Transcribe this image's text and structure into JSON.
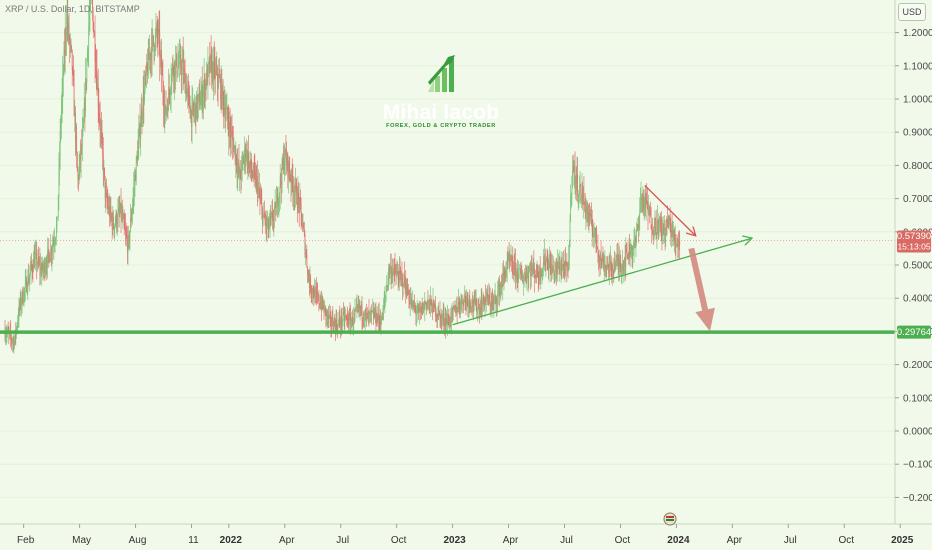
{
  "symbol": "XRP / U.S. Dollar, 1D, BITSTAMP",
  "currency": "USD",
  "logo": {
    "name": "Mihai Iacob",
    "tagline": "FOREX, GOLD & CRYPTO TRADER"
  },
  "colors": {
    "background": "#f1f9ea",
    "up_candle": "#7cc47a",
    "down_candle": "#e0736f",
    "support_line": "#4caf50",
    "trendline": "#4caf50",
    "downtrend_line": "#d9534f",
    "projection_arrow": "#d4897e",
    "current_price_tag": "#d96a63",
    "support_tag": "#4caf50"
  },
  "chart_data": {
    "type": "candlestick",
    "title": "XRP / U.S. Dollar, 1D, BITSTAMP",
    "y_axis": {
      "ticks": [
        1.2,
        1.1,
        1.0,
        0.9,
        0.8,
        0.7,
        0.6,
        0.5,
        0.4,
        0.3,
        0.2,
        0.1,
        0.0,
        -0.1,
        -0.2
      ],
      "tick_labels": [
        "1.20000",
        "1.10000",
        "1.00000",
        "0.90000",
        "0.80000",
        "0.70000",
        "0.60000",
        "0.50000",
        "0.40000",
        "0.30000",
        "0.20000",
        "0.10000",
        "0.00000",
        "−0.10000",
        "−0.20000"
      ],
      "range": [
        -0.24,
        1.27
      ]
    },
    "x_axis": {
      "labels": [
        "Feb",
        "May",
        "Aug",
        "11",
        "2022",
        "Apr",
        "Jul",
        "Oct",
        "2023",
        "Apr",
        "Jul",
        "Oct",
        "2024",
        "Apr",
        "Jul",
        "Oct",
        "2025"
      ],
      "bold": [
        "2022",
        "2023",
        "2024",
        "2025"
      ],
      "months": [
        1,
        4,
        7,
        10,
        12,
        15,
        18,
        21,
        24,
        27,
        30,
        33,
        36,
        39,
        42,
        45,
        48
      ]
    },
    "current_price": {
      "value": 0.5739,
      "label": "0.57390",
      "countdown": "15:13:05"
    },
    "support_level": {
      "value": 0.29764,
      "label": "0.29764"
    },
    "price_path": [
      [
        0,
        0.3
      ],
      [
        0.5,
        0.27
      ],
      [
        0.8,
        0.38
      ],
      [
        1.2,
        0.45
      ],
      [
        1.6,
        0.52
      ],
      [
        2.0,
        0.48
      ],
      [
        2.5,
        0.55
      ],
      [
        2.8,
        0.62
      ],
      [
        3.0,
        0.95
      ],
      [
        3.3,
        1.25
      ],
      [
        3.6,
        1.1
      ],
      [
        3.9,
        0.75
      ],
      [
        4.2,
        0.9
      ],
      [
        4.6,
        1.35
      ],
      [
        5.0,
        1.0
      ],
      [
        5.4,
        0.7
      ],
      [
        5.8,
        0.62
      ],
      [
        6.2,
        0.66
      ],
      [
        6.6,
        0.55
      ],
      [
        7.0,
        0.78
      ],
      [
        7.4,
        1.0
      ],
      [
        7.8,
        1.15
      ],
      [
        8.2,
        1.2
      ],
      [
        8.6,
        0.95
      ],
      [
        9.0,
        1.1
      ],
      [
        9.5,
        1.1
      ],
      [
        10.0,
        0.95
      ],
      [
        10.5,
        1.0
      ],
      [
        11.0,
        1.1
      ],
      [
        11.5,
        1.05
      ],
      [
        12.0,
        0.92
      ],
      [
        12.3,
        0.85
      ],
      [
        12.6,
        0.76
      ],
      [
        12.9,
        0.85
      ],
      [
        13.2,
        0.78
      ],
      [
        13.5,
        0.75
      ],
      [
        13.8,
        0.65
      ],
      [
        14.1,
        0.61
      ],
      [
        14.5,
        0.66
      ],
      [
        15.0,
        0.83
      ],
      [
        15.4,
        0.75
      ],
      [
        15.8,
        0.68
      ],
      [
        16.0,
        0.6
      ],
      [
        16.3,
        0.45
      ],
      [
        16.7,
        0.4
      ],
      [
        17.0,
        0.38
      ],
      [
        17.4,
        0.33
      ],
      [
        17.8,
        0.32
      ],
      [
        18.2,
        0.34
      ],
      [
        18.6,
        0.33
      ],
      [
        19.0,
        0.37
      ],
      [
        19.4,
        0.34
      ],
      [
        19.8,
        0.35
      ],
      [
        20.2,
        0.33
      ],
      [
        20.6,
        0.49
      ],
      [
        21.0,
        0.47
      ],
      [
        21.4,
        0.45
      ],
      [
        21.8,
        0.38
      ],
      [
        22.2,
        0.35
      ],
      [
        22.6,
        0.39
      ],
      [
        23.0,
        0.37
      ],
      [
        23.4,
        0.34
      ],
      [
        23.8,
        0.33
      ],
      [
        24.2,
        0.37
      ],
      [
        24.6,
        0.4
      ],
      [
        25.0,
        0.39
      ],
      [
        25.4,
        0.37
      ],
      [
        25.8,
        0.4
      ],
      [
        26.2,
        0.38
      ],
      [
        26.6,
        0.44
      ],
      [
        27.0,
        0.51
      ],
      [
        27.4,
        0.48
      ],
      [
        27.8,
        0.46
      ],
      [
        28.2,
        0.49
      ],
      [
        28.6,
        0.47
      ],
      [
        29.0,
        0.52
      ],
      [
        29.4,
        0.48
      ],
      [
        29.8,
        0.5
      ],
      [
        30.2,
        0.48
      ],
      [
        30.4,
        0.8
      ],
      [
        30.7,
        0.74
      ],
      [
        31.0,
        0.7
      ],
      [
        31.3,
        0.64
      ],
      [
        31.6,
        0.6
      ],
      [
        31.9,
        0.52
      ],
      [
        32.2,
        0.5
      ],
      [
        32.5,
        0.49
      ],
      [
        32.8,
        0.51
      ],
      [
        33.1,
        0.5
      ],
      [
        33.4,
        0.54
      ],
      [
        33.8,
        0.56
      ],
      [
        34.1,
        0.7
      ],
      [
        34.4,
        0.68
      ],
      [
        34.7,
        0.62
      ],
      [
        35.0,
        0.62
      ],
      [
        35.3,
        0.6
      ],
      [
        35.6,
        0.63
      ],
      [
        35.9,
        0.57
      ],
      [
        36.2,
        0.57
      ]
    ],
    "annotations": [
      {
        "type": "horizontal_line",
        "value": 0.29764,
        "color": "support_line"
      },
      {
        "type": "trendline",
        "from": [
          24.0,
          0.32
        ],
        "to": [
          40.0,
          0.58
        ],
        "arrow": true
      },
      {
        "type": "trendline",
        "from": [
          34.3,
          0.74
        ],
        "to": [
          37.0,
          0.59
        ],
        "arrow": true
      },
      {
        "type": "projection_arrow",
        "from": [
          36.8,
          0.55
        ],
        "to": [
          37.8,
          0.3
        ]
      }
    ]
  }
}
